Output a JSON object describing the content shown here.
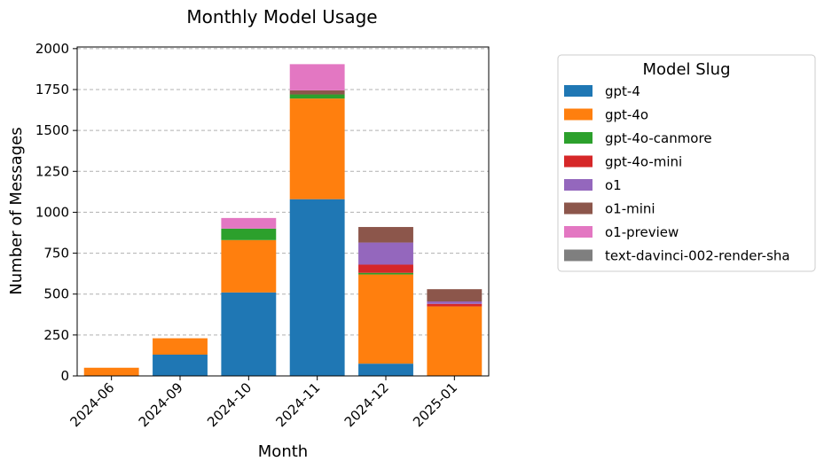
{
  "chart_data": {
    "type": "bar",
    "stacked": true,
    "title": "Monthly Model Usage",
    "xlabel": "Month",
    "ylabel": "Number of Messages",
    "ylim": [
      0,
      2000
    ],
    "yticks": [
      0,
      250,
      500,
      750,
      1000,
      1250,
      1500,
      1750,
      2000
    ],
    "grid": "y-dashed",
    "legend_title": "Model Slug",
    "legend_position": "right",
    "categories": [
      "2024-06",
      "2024-09",
      "2024-10",
      "2024-11",
      "2024-12",
      "2025-01"
    ],
    "series": [
      {
        "name": "gpt-4",
        "color": "#1f77b4",
        "values": [
          0,
          130,
          510,
          1080,
          75,
          0
        ]
      },
      {
        "name": "gpt-4o",
        "color": "#ff7f0e",
        "values": [
          50,
          100,
          320,
          615,
          545,
          425
        ]
      },
      {
        "name": "gpt-4o-canmore",
        "color": "#2ca02c",
        "values": [
          0,
          0,
          70,
          25,
          10,
          0
        ]
      },
      {
        "name": "gpt-4o-mini",
        "color": "#d62728",
        "values": [
          0,
          0,
          0,
          0,
          50,
          15
        ]
      },
      {
        "name": "o1",
        "color": "#9467bd",
        "values": [
          0,
          0,
          0,
          0,
          135,
          15
        ]
      },
      {
        "name": "o1-mini",
        "color": "#8c564b",
        "values": [
          0,
          0,
          0,
          25,
          95,
          75
        ]
      },
      {
        "name": "o1-preview",
        "color": "#e377c2",
        "values": [
          0,
          0,
          65,
          160,
          0,
          0
        ]
      },
      {
        "name": "text-davinci-002-render-sha",
        "color": "#7f7f7f",
        "values": [
          0,
          0,
          0,
          0,
          0,
          0
        ]
      }
    ]
  }
}
